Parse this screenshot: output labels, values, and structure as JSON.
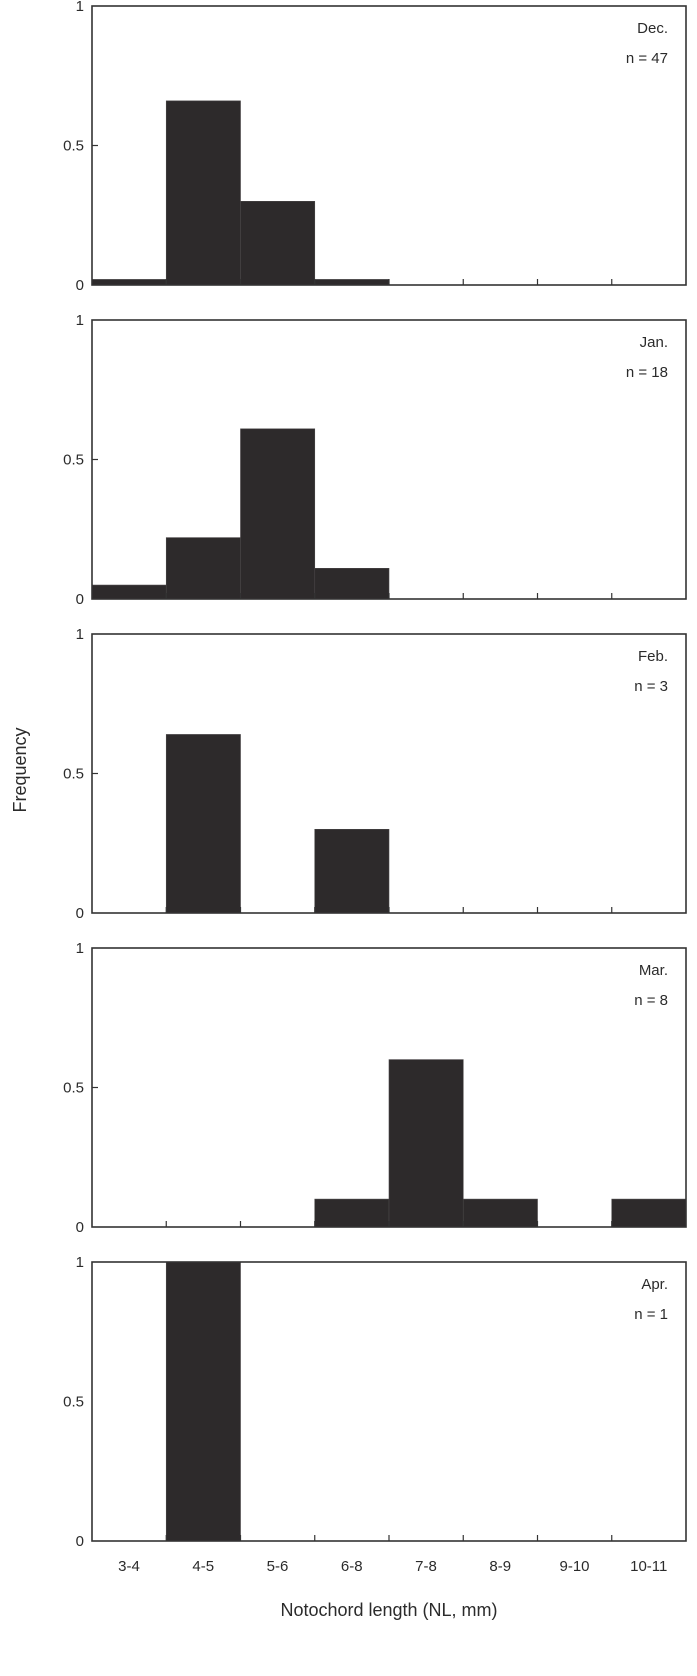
{
  "chart_data": {
    "type": "bar",
    "layout": "five vertically stacked histogram panels sharing x-axis",
    "xlabel": "Notochord length (NL, mm)",
    "ylabel": "Frequency",
    "categories": [
      "3-4",
      "4-5",
      "5-6",
      "6-8",
      "7-8",
      "8-9",
      "9-10",
      "10-11"
    ],
    "ylim": [
      0,
      1
    ],
    "yticks": [
      0,
      0.5,
      1
    ],
    "ytick_labels": [
      "0",
      "0.5",
      "1"
    ],
    "grid": false,
    "bar_color": "#2d2a2b",
    "panels": [
      {
        "month": "Dec.",
        "n_label": "n = 47",
        "values": [
          0.02,
          0.66,
          0.3,
          0.02,
          0,
          0,
          0,
          0
        ]
      },
      {
        "month": "Jan.",
        "n_label": "n = 18",
        "values": [
          0.05,
          0.22,
          0.61,
          0.11,
          0,
          0,
          0,
          0
        ]
      },
      {
        "month": "Feb.",
        "n_label": "n = 3",
        "values": [
          0,
          0.64,
          0,
          0.3,
          0,
          0,
          0,
          0
        ]
      },
      {
        "month": "Mar.",
        "n_label": "n = 8",
        "values": [
          0,
          0,
          0,
          0.1,
          0.6,
          0.1,
          0,
          0.1
        ]
      },
      {
        "month": "Apr.",
        "n_label": "n = 1",
        "values": [
          0,
          1.0,
          0,
          0,
          0,
          0,
          0,
          0
        ]
      }
    ]
  }
}
